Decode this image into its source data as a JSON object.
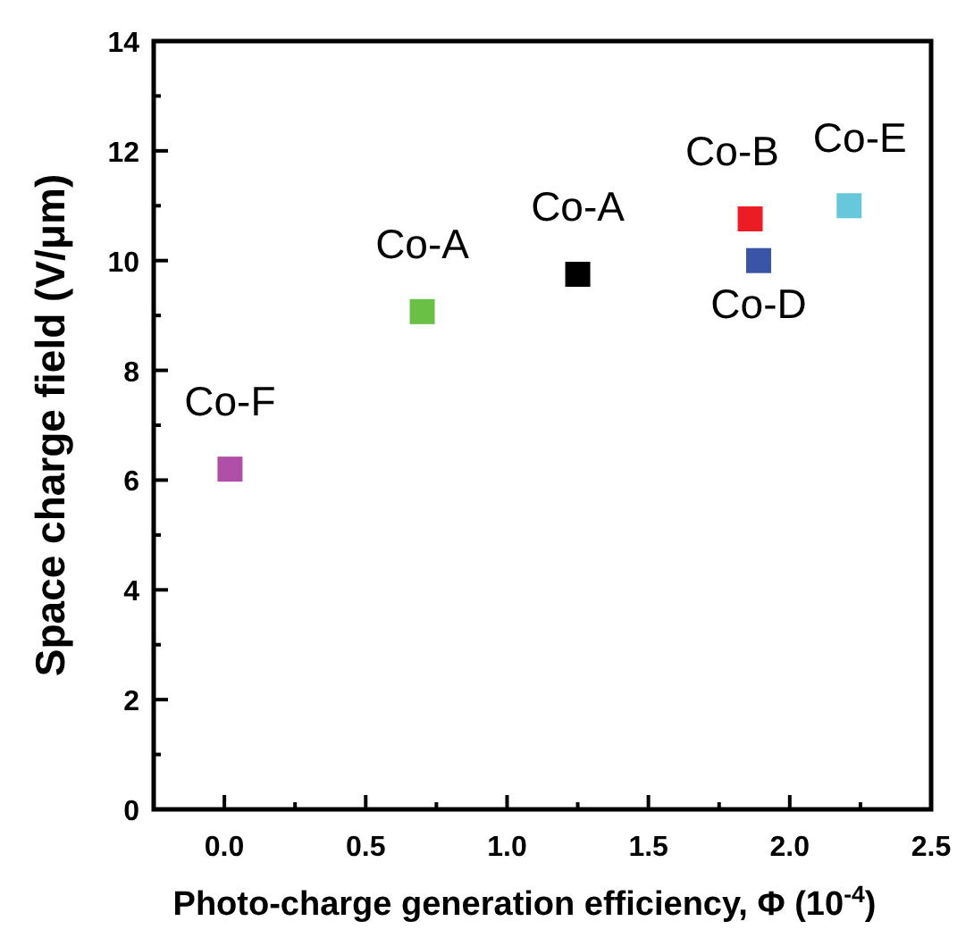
{
  "chart_data": {
    "type": "scatter",
    "xlabel": "Photo-charge generation efficiency, Φ (10$^{-4}$)",
    "ylabel": "Space charge field (V/μm)",
    "marker": "square",
    "grid": false,
    "xlim": [
      -0.25,
      2.5
    ],
    "xticks": [
      {
        "value": -0.25,
        "label": null
      },
      {
        "value": 0,
        "label": "0.0"
      },
      {
        "value": 0.25,
        "label": null
      },
      {
        "value": 0.5,
        "label": "0.5"
      },
      {
        "value": 0.75,
        "label": null
      },
      {
        "value": 1,
        "label": "1.0"
      },
      {
        "value": 1.25,
        "label": null
      },
      {
        "value": 1.5,
        "label": "1.5"
      },
      {
        "value": 1.75,
        "label": null
      },
      {
        "value": 2,
        "label": "2.0"
      },
      {
        "value": 2.25,
        "label": null
      },
      {
        "value": 2.5,
        "label": "2.5"
      }
    ],
    "ylim": [
      0,
      14
    ],
    "yticks": [
      0,
      {
        "value": 1,
        "label": null
      },
      2,
      {
        "value": 3,
        "label": null
      },
      4,
      {
        "value": 5,
        "label": null
      },
      6,
      {
        "value": 7,
        "label": null
      },
      8,
      {
        "value": 9,
        "label": null
      },
      10,
      {
        "value": 11,
        "label": null
      },
      12,
      {
        "value": 13,
        "label": null
      },
      14
    ],
    "series": [
      {
        "name": "Co-F",
        "color": "#b04fa8",
        "x": [
          0.02
        ],
        "values": [
          6.2
        ]
      },
      {
        "name": "Co-A",
        "color": "#6abf45",
        "x": [
          0.7
        ],
        "values": [
          9.07
        ]
      },
      {
        "name": "Co-A",
        "color": "#000000",
        "x": [
          1.25
        ],
        "values": [
          9.75
        ]
      },
      {
        "name": "Co-B",
        "color": "#ec1c24",
        "x": [
          1.86
        ],
        "values": [
          10.76
        ]
      },
      {
        "name": "Co-D",
        "color": "#3a55a5",
        "x": [
          1.89
        ],
        "values": [
          10.0
        ]
      },
      {
        "name": "Co-E",
        "color": "#66c8da",
        "x": [
          2.21
        ],
        "values": [
          11.0
        ]
      }
    ]
  }
}
